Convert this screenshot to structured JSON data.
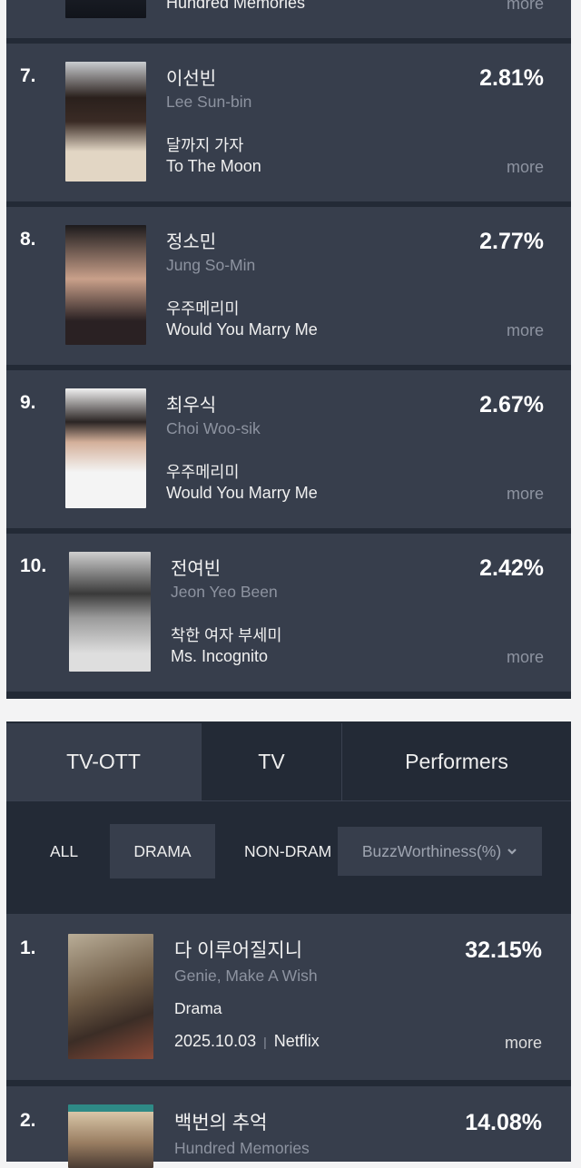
{
  "colors": {
    "page_bg": "#f3f3f4",
    "card_bg": "#373e4c",
    "panel_bg": "#232a36",
    "muted_text": "#8d93a0"
  },
  "performers_top_partial": {
    "drama_en": "Hundred Memories",
    "more": "more"
  },
  "performers": [
    {
      "rank": "7.",
      "name_kr": "이선빈",
      "name_en": "Lee Sun-bin",
      "drama_kr": "달까지 가자",
      "drama_en": "To The Moon",
      "percent": "2.81%",
      "more": "more"
    },
    {
      "rank": "8.",
      "name_kr": "정소민",
      "name_en": "Jung So-Min",
      "drama_kr": "우주메리미",
      "drama_en": "Would You Marry Me",
      "percent": "2.77%",
      "more": "more"
    },
    {
      "rank": "9.",
      "name_kr": "최우식",
      "name_en": "Choi Woo-sik",
      "drama_kr": "우주메리미",
      "drama_en": "Would You Marry Me",
      "percent": "2.67%",
      "more": "more"
    },
    {
      "rank": "10.",
      "name_kr": "전여빈",
      "name_en": "Jeon Yeo Been",
      "drama_kr": "착한 여자 부세미",
      "drama_en": "Ms. Incognito",
      "percent": "2.42%",
      "more": "more"
    }
  ],
  "tabs": [
    {
      "label": "TV-OTT",
      "active": true
    },
    {
      "label": "TV"
    },
    {
      "label": "Performers"
    }
  ],
  "filters": [
    {
      "label": "ALL"
    },
    {
      "label": "DRAMA",
      "active": true
    },
    {
      "label": "NON-DRAM"
    }
  ],
  "sort": {
    "label": "BuzzWorthiness(%)",
    "icon": "chevron-down-icon"
  },
  "shows": [
    {
      "rank": "1.",
      "title_kr": "다 이루어질지니",
      "title_en": "Genie, Make A Wish",
      "genre": "Drama",
      "date": "2025.10.03",
      "platform": "Netflix",
      "percent": "32.15%",
      "more": "more"
    },
    {
      "rank": "2.",
      "title_kr": "백번의 추억",
      "title_en": "Hundred Memories",
      "percent": "14.08%"
    }
  ]
}
